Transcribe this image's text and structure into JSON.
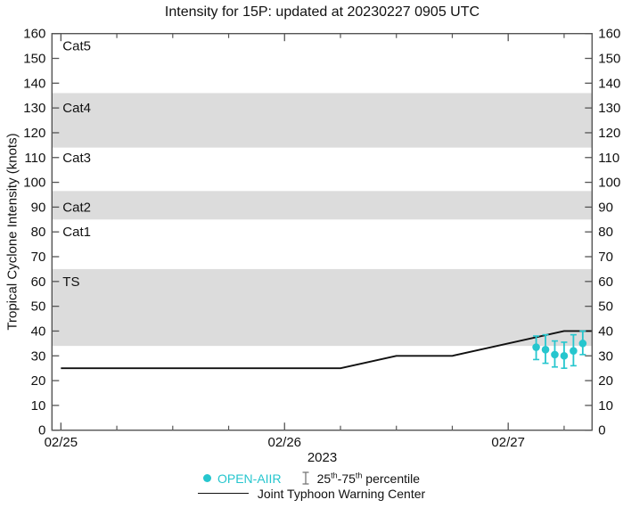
{
  "title": "Intensity for 15P: updated at 20230227 0905 UTC",
  "colors": {
    "accent": "#26C6CE",
    "band": "#DCDCDC",
    "axis": "#555555",
    "jtwc_line": "#111111"
  },
  "chart_data": {
    "type": "line",
    "title": "Intensity for 15P: updated at 20230227 0905 UTC",
    "xlabel": "2023",
    "ylabel": "Tropical Cyclone Intensity (knots)",
    "ylim": [
      0,
      160
    ],
    "y_ticks": [
      0,
      10,
      20,
      30,
      40,
      50,
      60,
      70,
      80,
      90,
      100,
      110,
      120,
      130,
      140,
      150,
      160
    ],
    "y_tick_labels_both_sides": true,
    "xlim_days": [
      -0.04,
      2.375
    ],
    "x_major_ticks": [
      {
        "t_days": 0,
        "label": "02/25"
      },
      {
        "t_days": 1,
        "label": "02/26"
      },
      {
        "t_days": 2,
        "label": "02/27"
      }
    ],
    "x_minor_tick_interval_days": 0.25,
    "grid": "off",
    "legend_position": "bottom",
    "category_bands": [
      {
        "label": "TS",
        "from_knots": 34,
        "to_knots": 65,
        "shaded": true,
        "label_at_knots": 60
      },
      {
        "label": "Cat1",
        "from_knots": 65,
        "to_knots": 85,
        "shaded": false,
        "label_at_knots": 80
      },
      {
        "label": "Cat2",
        "from_knots": 85,
        "to_knots": 96.5,
        "shaded": true,
        "label_at_knots": 90
      },
      {
        "label": "Cat3",
        "from_knots": 96.5,
        "to_knots": 114,
        "shaded": false,
        "label_at_knots": 110
      },
      {
        "label": "Cat4",
        "from_knots": 114,
        "to_knots": 136,
        "shaded": true,
        "label_at_knots": 130
      },
      {
        "label": "Cat5",
        "from_knots": 136,
        "to_knots": 160,
        "shaded": false,
        "label_at_knots": 155
      }
    ],
    "series": [
      {
        "name": "Joint Typhoon Warning Center",
        "type": "line",
        "color": "#111111",
        "points": [
          {
            "time": "02/25 00:00",
            "t_days": 0,
            "knots": 25
          },
          {
            "time": "02/26 06:00",
            "t_days": 1.25,
            "knots": 25
          },
          {
            "time": "02/26 12:00",
            "t_days": 1.5,
            "knots": 30
          },
          {
            "time": "02/26 18:00",
            "t_days": 1.75,
            "knots": 30
          },
          {
            "time": "02/27 06:00",
            "t_days": 2.25,
            "knots": 40
          },
          {
            "time": "02/27 09:00",
            "t_days": 2.375,
            "knots": 40
          }
        ]
      },
      {
        "name": "OPEN-AIIR",
        "type": "scatter_with_error_bars",
        "color": "#26C6CE",
        "error_bars": "25th-75th percentile",
        "points": [
          {
            "time": "02/27 03:00",
            "t_days": 2.125,
            "knots": 33.5,
            "p25": 28.5,
            "p75": 38
          },
          {
            "time": "02/27 04:00",
            "t_days": 2.1667,
            "knots": 32.5,
            "p25": 27,
            "p75": 38.5
          },
          {
            "time": "02/27 05:00",
            "t_days": 2.2083,
            "knots": 30.5,
            "p25": 25.5,
            "p75": 36
          },
          {
            "time": "02/27 06:00",
            "t_days": 2.25,
            "knots": 30,
            "p25": 25,
            "p75": 35.5
          },
          {
            "time": "02/27 07:00",
            "t_days": 2.2917,
            "knots": 32,
            "p25": 26,
            "p75": 38.5
          },
          {
            "time": "02/27 08:00",
            "t_days": 2.3333,
            "knots": 35,
            "p25": 30.5,
            "p75": 40
          }
        ]
      }
    ]
  },
  "legend": {
    "open_aiir_label": "OPEN-AIIR",
    "percentile": {
      "pre": "25",
      "sup1": "th",
      "mid": "-75",
      "sup2": "th",
      "post": " percentile"
    },
    "jtwc_label": "Joint Typhoon Warning Center"
  }
}
